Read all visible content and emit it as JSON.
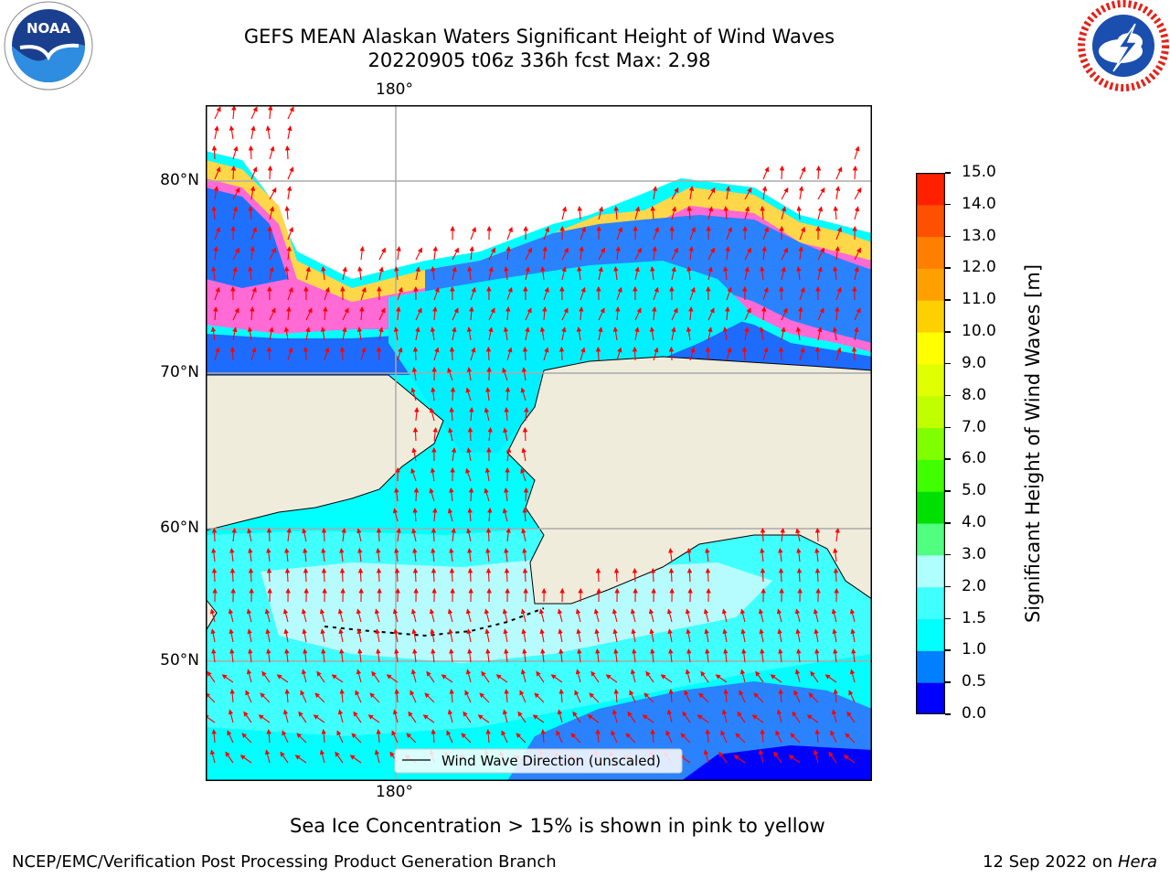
{
  "title": {
    "line1": "GEFS MEAN Alaskan Waters Significant Height of Wind Waves",
    "line2": "20220905 t06z 336h fcst   Max: 2.98"
  },
  "logos": {
    "left": {
      "icon": "noaa-logo",
      "text": "NOAA"
    },
    "right": {
      "icon": "national-weather-service-logo",
      "text": "NATIONAL WEATHER SERVICE"
    }
  },
  "map": {
    "lon_label_top": "180°",
    "lon_label_bottom": "180°",
    "lat_labels": [
      "80°N",
      "70°N",
      "60°N",
      "50°N"
    ],
    "legend_label": "Wind Wave Direction (unscaled)",
    "arrow_color": "#ff0000",
    "land_color": "#efecdc"
  },
  "colorbar": {
    "label": "Significant Height of Wind Waves [m]",
    "ticks": [
      "0.0",
      "0.5",
      "1.0",
      "1.5",
      "2.0",
      "3.0",
      "4.0",
      "5.0",
      "6.0",
      "7.0",
      "8.0",
      "9.0",
      "10.0",
      "11.0",
      "12.0",
      "13.0",
      "14.0",
      "15.0"
    ],
    "colors": [
      "#0000ff",
      "#0080ff",
      "#00ffff",
      "#40ffff",
      "#b0ffff",
      "#50ff80",
      "#00e000",
      "#40ff00",
      "#80ff00",
      "#c0ff00",
      "#e0ff00",
      "#ffff00",
      "#ffd000",
      "#ffa000",
      "#ff8000",
      "#ff5000",
      "#ff2000"
    ]
  },
  "bottom_text": "Sea Ice Concentration > 15% is shown in pink to yellow",
  "footer": {
    "left": "NCEP/EMC/Verification Post Processing Product Generation Branch",
    "right_date": "12 Sep 2022 on ",
    "right_host": "Hera"
  }
}
